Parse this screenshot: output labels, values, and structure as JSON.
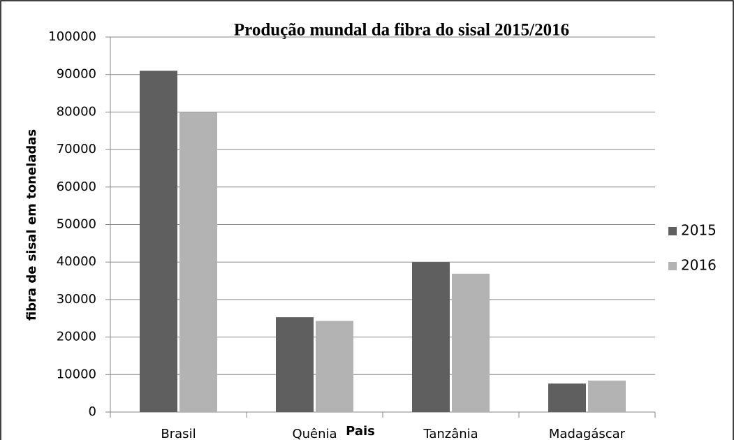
{
  "chart_data": {
    "type": "bar",
    "title": "Produção mundal da fibra do sisal 2015/2016",
    "x_label": "Pais",
    "y_label": "fibra de sisal em toneladas",
    "categories": [
      "Brasil",
      "Quênia",
      "Tanzânia",
      "Madagáscar"
    ],
    "series": [
      {
        "name": "2015",
        "color": "#5f5f5f",
        "values": [
          91000,
          25300,
          40000,
          7600
        ]
      },
      {
        "name": "2016",
        "color": "#b3b3b3",
        "values": [
          80000,
          24300,
          36900,
          8400
        ]
      }
    ],
    "ylim": [
      0,
      100000
    ],
    "yticks": [
      0,
      10000,
      20000,
      30000,
      40000,
      50000,
      60000,
      70000,
      80000,
      90000,
      100000
    ],
    "grid": true,
    "legend": "right"
  }
}
